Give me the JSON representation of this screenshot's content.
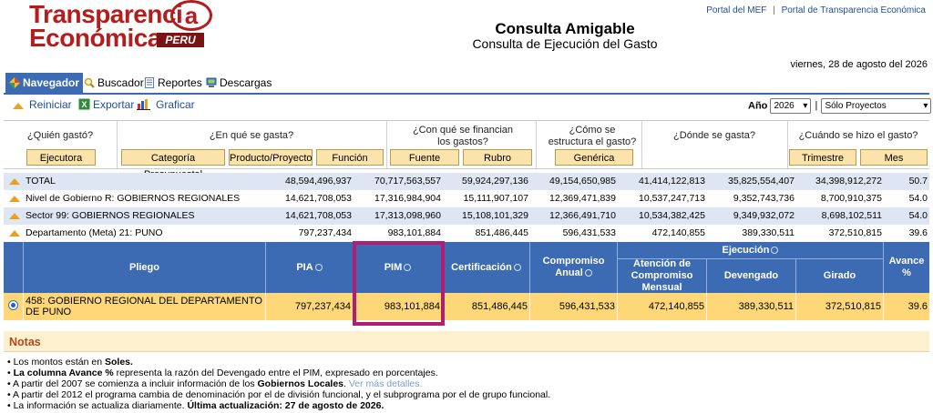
{
  "header": {
    "logo_line1": "Transparenci",
    "logo_a": "a",
    "logo_line2": "Económica",
    "logo_peru": "PERU",
    "title": "Consulta Amigable",
    "subtitle": "Consulta de Ejecución del Gasto",
    "link_mef": "Portal del MEF",
    "link_sep": "|",
    "link_te": "Portal de Transparencia Económica",
    "date": "viernes, 28 de agosto del 2026"
  },
  "tabs": [
    {
      "label": "Navegador",
      "icon": "navigator-icon"
    },
    {
      "label": "Buscador",
      "icon": "search-icon"
    },
    {
      "label": "Reportes",
      "icon": "report-icon"
    },
    {
      "label": "Descargas",
      "icon": "download-icon"
    }
  ],
  "toolbar": {
    "reiniciar": "Reiniciar",
    "exportar": "Exportar",
    "graficar": "Graficar",
    "ano_label": "Año",
    "ano_value": "2026",
    "scope_value": "Sólo Proyectos"
  },
  "questions": {
    "quien": "¿Quién gastó?",
    "que": "¿En qué se gasta?",
    "con_que": "¿Con qué se financian los gastos?",
    "estructura": "¿Cómo se estructura el gasto?",
    "donde": "¿Dónde se gasta?",
    "cuando": "¿Cuándo se hizo el gasto?"
  },
  "buttons": {
    "ejecutora": "Ejecutora",
    "categoria": "Categoría Presupuestal",
    "producto": "Producto/Proyecto",
    "funcion": "Función",
    "fuente": "Fuente",
    "rubro": "Rubro",
    "generica": "Genérica",
    "trimestre": "Trimestre",
    "mes": "Mes"
  },
  "summary_rows": [
    {
      "label": "TOTAL",
      "pia": "48,594,496,937",
      "pim": "70,717,563,557",
      "cert": "59,924,297,136",
      "comp": "49,154,650,985",
      "atenc": "41,414,122,813",
      "dev": "35,825,554,407",
      "gir": "34,398,912,272",
      "avance": "50.7"
    },
    {
      "label": "Nivel de Gobierno R: GOBIERNOS REGIONALES",
      "pia": "14,621,708,053",
      "pim": "17,316,984,904",
      "cert": "15,111,907,107",
      "comp": "12,369,471,839",
      "atenc": "10,537,247,713",
      "dev": "9,352,743,736",
      "gir": "8,700,910,375",
      "avance": "54.0"
    },
    {
      "label": "Sector 99: GOBIERNOS REGIONALES",
      "pia": "14,621,708,053",
      "pim": "17,313,098,960",
      "cert": "15,108,101,329",
      "comp": "12,366,491,710",
      "atenc": "10,534,382,425",
      "dev": "9,349,932,072",
      "gir": "8,698,102,511",
      "avance": "54.0"
    },
    {
      "label": "Departamento (Meta) 21: PUNO",
      "pia": "797,237,434",
      "pim": "983,101,884",
      "cert": "851,486,445",
      "comp": "596,431,533",
      "atenc": "472,140,855",
      "dev": "389,330,511",
      "gir": "372,510,815",
      "avance": "39.6"
    }
  ],
  "table_headers": {
    "pliego": "Pliego",
    "pia": "PIA",
    "pim": "PIM",
    "cert": "Certificación",
    "comp": "Compromiso Anual",
    "ejecucion": "Ejecución",
    "atenc": "Atención de Compromiso Mensual",
    "dev": "Devengado",
    "gir": "Girado",
    "avance": "Avance %"
  },
  "data_row": {
    "pliego": "458: GOBIERNO REGIONAL DEL DEPARTAMENTO DE PUNO",
    "pia": "797,237,434",
    "pim": "983,101,884",
    "cert": "851,486,445",
    "comp": "596,431,533",
    "atenc": "472,140,855",
    "dev": "389,330,511",
    "gir": "372,510,815",
    "avance": "39.6"
  },
  "notas": {
    "title": "Notas",
    "n1_a": "Los montos están en ",
    "n1_b": "Soles.",
    "n2_a": "La columna Avance %",
    "n2_b": " representa la razón del Devengado entre el PIM, expresado en porcentajes.",
    "n3_a": "A partir del 2007 se comienza a incluir información de los ",
    "n3_b": "Gobiernos Locales",
    "n3_c": ". ",
    "n3_link": "Ver más detalles.",
    "n4": "A partir del 2012 el programa cambia de denominación por el de división funcional, y el subprograma por el de grupo funcional.",
    "n5_a": "La información se actualiza diariamente. ",
    "n5_b": "Última actualización: 27 de agosto de 2026."
  },
  "colors": {
    "header_blue": "#3c6bb4",
    "row_yellow": "#fdd778",
    "button_tan": "#fbe3ac",
    "highlight": "#b01d73",
    "logo_red": "#b51d1d"
  }
}
